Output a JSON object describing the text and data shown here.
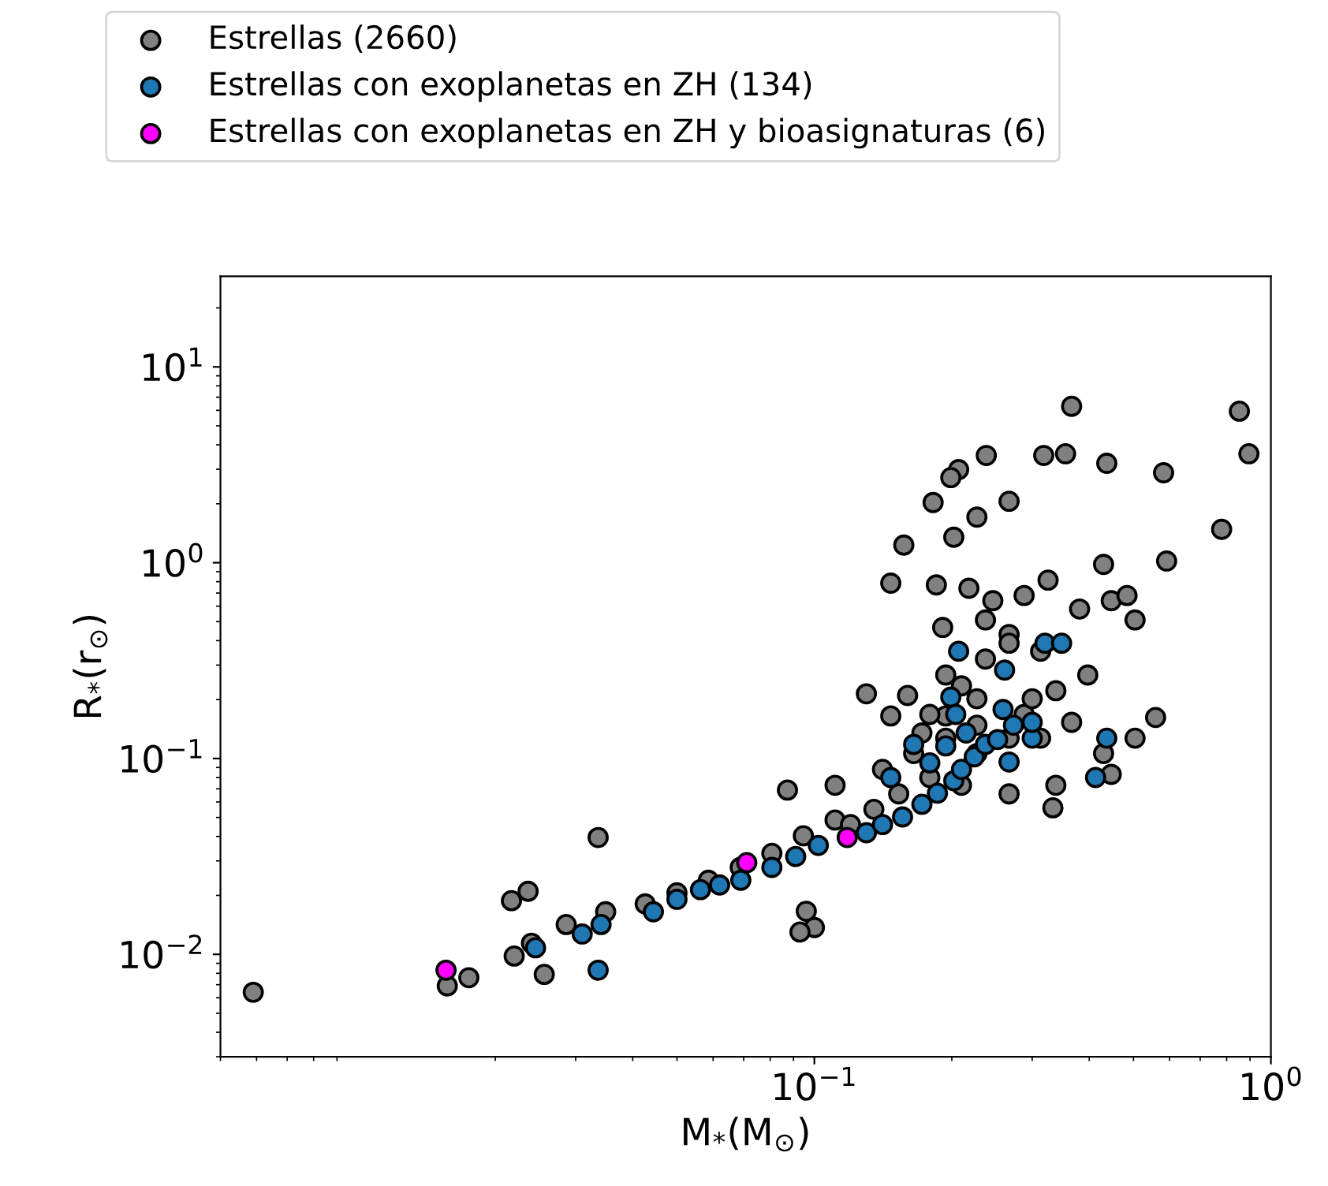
{
  "chart_data": {
    "type": "scatter",
    "xlabel": "M$_{*}$(M$_{⊙}$)",
    "ylabel": "R$_{*}$(r$_{⊙}$)",
    "log": "xy",
    "grid": false,
    "legend": "top",
    "marker": "circle",
    "xlim": [
      0.005,
      1.0
    ],
    "ylim": [
      0.003,
      29
    ],
    "xticks": [
      {
        "value": 0.1,
        "label": "10$^{−1}$"
      },
      {
        "value": 1.0,
        "label": "10$^{0}$"
      }
    ],
    "yticks": [
      {
        "value": 0.01,
        "label": "10$^{−2}$"
      },
      {
        "value": 0.1,
        "label": "10$^{−1}$"
      },
      {
        "value": 1.0,
        "label": "10$^{0}$"
      },
      {
        "value": 10,
        "label": "10$^{1}$"
      }
    ],
    "series": [
      {
        "name": "Estrellas (2660)",
        "color": "#808080",
        "x": [
          0.0059,
          0.0157,
          0.0175,
          0.0217,
          0.0236,
          0.0336,
          0.0256,
          0.022,
          0.024,
          0.0286,
          0.0349,
          0.0426,
          0.05,
          0.0586,
          0.0688,
          0.0807,
          0.0946,
          0.111,
          0.0873,
          0.096,
          0.1,
          0.093,
          0.13,
          0.16,
          0.147,
          0.157,
          0.366,
          0.853,
          0.895,
          0.78,
          0.582,
          0.591,
          0.437,
          0.318,
          0.355,
          0.238,
          0.207,
          0.199,
          0.267,
          0.227,
          0.202,
          0.182,
          0.191,
          0.185,
          0.246,
          0.288,
          0.325,
          0.43,
          0.447,
          0.484,
          0.504,
          0.381,
          0.218,
          0.237,
          0.267,
          0.313,
          0.338,
          0.397,
          0.194,
          0.227,
          0.288,
          0.366,
          0.504,
          0.559,
          0.43,
          0.447,
          0.338,
          0.333,
          0.267,
          0.227,
          0.194,
          0.165,
          0.141,
          0.153,
          0.179,
          0.21,
          0.267,
          0.313,
          0.135,
          0.12,
          0.111,
          0.147,
          0.194,
          0.227,
          0.267,
          0.237,
          0.21,
          0.3,
          0.179,
          0.172
        ],
        "values": [
          0.0064,
          0.0069,
          0.0076,
          0.0188,
          0.021,
          0.0395,
          0.0079,
          0.0098,
          0.0114,
          0.0142,
          0.0165,
          0.0181,
          0.0206,
          0.0239,
          0.0278,
          0.0328,
          0.0403,
          0.0485,
          0.069,
          0.0166,
          0.0137,
          0.013,
          0.214,
          0.21,
          0.786,
          1.23,
          6.29,
          5.94,
          3.6,
          1.48,
          2.88,
          1.02,
          3.22,
          3.53,
          3.6,
          3.53,
          2.99,
          2.72,
          2.06,
          1.71,
          1.35,
          2.03,
          0.467,
          0.77,
          0.64,
          0.68,
          0.815,
          0.98,
          0.64,
          0.68,
          0.51,
          0.58,
          0.74,
          0.51,
          0.43,
          0.353,
          0.222,
          0.267,
          0.267,
          0.202,
          0.168,
          0.153,
          0.127,
          0.162,
          0.106,
          0.083,
          0.073,
          0.056,
          0.066,
          0.106,
          0.127,
          0.106,
          0.088,
          0.066,
          0.08,
          0.073,
          0.127,
          0.127,
          0.055,
          0.046,
          0.073,
          0.165,
          0.165,
          0.148,
          0.388,
          0.322,
          0.235,
          0.202,
          0.168,
          0.135
        ]
      },
      {
        "name": "Estrellas con exoplanetas en ZH (134)",
        "color": "#1f77b4",
        "x": [
          0.0245,
          0.031,
          0.0341,
          0.0336,
          0.0444,
          0.05,
          0.0563,
          0.062,
          0.069,
          0.0807,
          0.091,
          0.102,
          0.13,
          0.141,
          0.156,
          0.172,
          0.186,
          0.202,
          0.21,
          0.224,
          0.237,
          0.252,
          0.273,
          0.3,
          0.194,
          0.267,
          0.437,
          0.413,
          0.207,
          0.32,
          0.348,
          0.261,
          0.199,
          0.204,
          0.259,
          0.3,
          0.215,
          0.165,
          0.179,
          0.147
        ],
        "values": [
          0.0108,
          0.0127,
          0.0142,
          0.0083,
          0.0165,
          0.0191,
          0.0214,
          0.0226,
          0.0239,
          0.0278,
          0.0316,
          0.036,
          0.0418,
          0.046,
          0.0503,
          0.0584,
          0.0665,
          0.077,
          0.088,
          0.102,
          0.118,
          0.125,
          0.148,
          0.127,
          0.116,
          0.096,
          0.127,
          0.08,
          0.353,
          0.388,
          0.388,
          0.283,
          0.206,
          0.168,
          0.178,
          0.153,
          0.135,
          0.118,
          0.095,
          0.08
        ]
      },
      {
        "name": "Estrellas con exoplanetas en ZH y bioasignaturas (6)",
        "color": "#ff00ff",
        "x": [
          0.0156,
          0.0711,
          0.118
        ],
        "values": [
          0.0083,
          0.0294,
          0.0395
        ]
      }
    ]
  }
}
